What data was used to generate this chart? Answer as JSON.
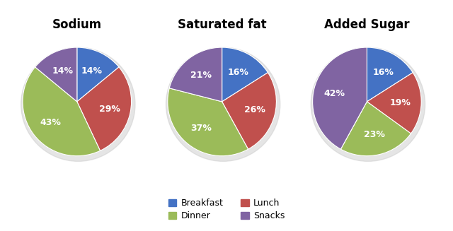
{
  "charts": [
    {
      "title": "Sodium",
      "values": [
        14,
        29,
        43,
        14
      ],
      "labels": [
        "14%",
        "29%",
        "43%",
        "14%"
      ],
      "startangle": 90
    },
    {
      "title": "Saturated fat",
      "values": [
        16,
        26,
        37,
        21
      ],
      "labels": [
        "16%",
        "26%",
        "37%",
        "21%"
      ],
      "startangle": 90
    },
    {
      "title": "Added Sugar",
      "values": [
        16,
        19,
        23,
        42
      ],
      "labels": [
        "16%",
        "19%",
        "23%",
        "42%"
      ],
      "startangle": 90
    }
  ],
  "colors": [
    "#4472c4",
    "#c0504d",
    "#9bbb59",
    "#8064a2"
  ],
  "legend_labels": [
    "Breakfast",
    "Dinner",
    "Lunch",
    "Snacks"
  ],
  "legend_colors": [
    "#4472c4",
    "#9bbb59",
    "#c0504d",
    "#8064a2"
  ],
  "text_color": "white",
  "fontsize_title": 12,
  "fontsize_pct": 9,
  "bg_color": "#f2f2f2"
}
